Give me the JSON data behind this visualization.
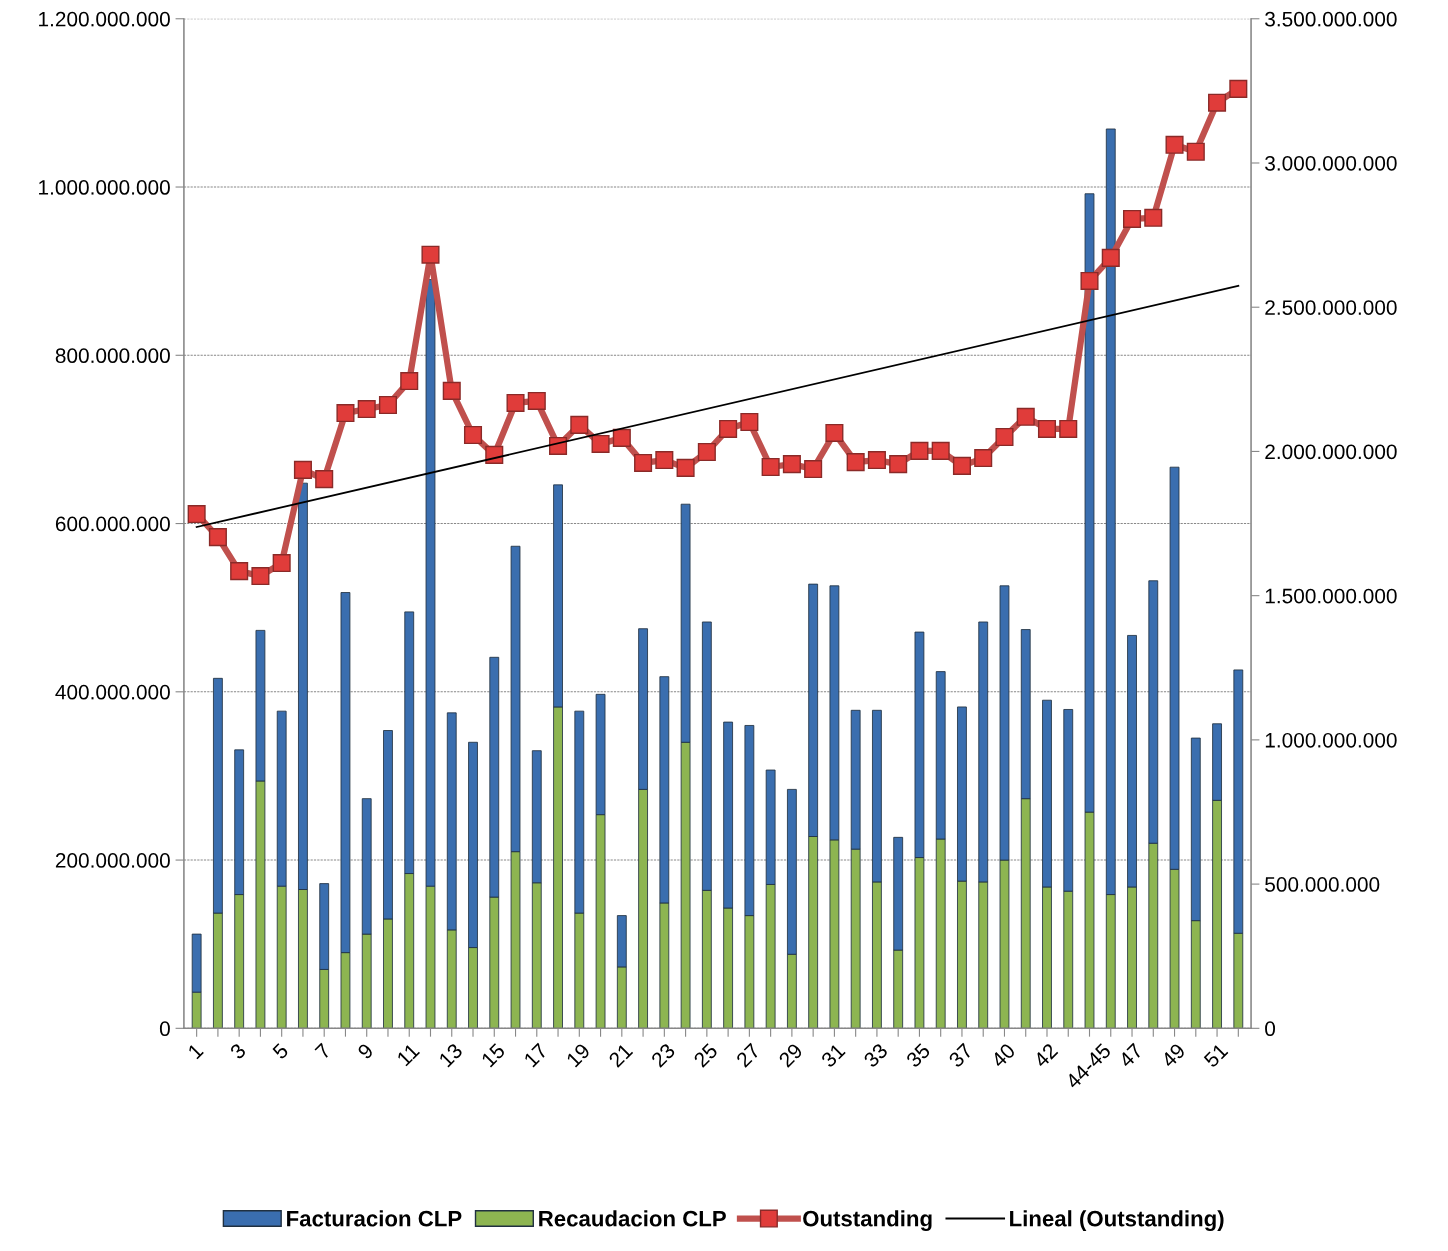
{
  "chart_data": {
    "type": "bar",
    "stacked": true,
    "legend": "bottom",
    "grid": "y",
    "tick_labels": true,
    "categories": [
      "1",
      null,
      "3",
      null,
      "5",
      null,
      "7",
      null,
      "9",
      null,
      "11",
      null,
      "13",
      null,
      "15",
      null,
      "17",
      null,
      "19",
      null,
      "21",
      null,
      "23",
      null,
      "25",
      null,
      "27",
      null,
      "29",
      null,
      "31",
      null,
      "33",
      null,
      "35",
      null,
      "37",
      null,
      "40",
      null,
      "42",
      null,
      "44-45",
      null,
      "47",
      null,
      "49",
      null,
      "51",
      null
    ],
    "ylim": [
      0,
      1200000000
    ],
    "yticks": [
      {
        "value": 0,
        "label": "0"
      },
      {
        "value": 200000000,
        "label": "200.000.000"
      },
      {
        "value": 400000000,
        "label": "400.000.000"
      },
      {
        "value": 600000000,
        "label": "600.000.000"
      },
      {
        "value": 800000000,
        "label": "800.000.000"
      },
      {
        "value": 1000000000,
        "label": "1.000.000.000"
      },
      {
        "value": 1200000000,
        "label": "1.200.000.000"
      }
    ],
    "y2lim": [
      0,
      3500000000
    ],
    "y2ticks": [
      {
        "value": 0,
        "label": "0"
      },
      {
        "value": 500000000,
        "label": "500.000.000"
      },
      {
        "value": 1000000000,
        "label": "1.000.000.000"
      },
      {
        "value": 1500000000,
        "label": "1.500.000.000"
      },
      {
        "value": 2000000000,
        "label": "2.000.000.000"
      },
      {
        "value": 2500000000,
        "label": "2.500.000.000"
      },
      {
        "value": 3000000000,
        "label": "3.000.000.000"
      },
      {
        "value": 3500000000,
        "label": "3.500.000.000"
      }
    ],
    "series": [
      {
        "name": "Recaudacion CLP",
        "color": "#8db551",
        "values": [
          43000000,
          137000000,
          159000000,
          294000000,
          169000000,
          165000000,
          70000000,
          90000000,
          112000000,
          130000000,
          184000000,
          169000000,
          117000000,
          96000000,
          156000000,
          210000000,
          173000000,
          382000000,
          137000000,
          254000000,
          73000000,
          284000000,
          149000000,
          340000000,
          164000000,
          143000000,
          134000000,
          171000000,
          88000000,
          228000000,
          224000000,
          213000000,
          174000000,
          93000000,
          203000000,
          225000000,
          175000000,
          174000000,
          200000000,
          273000000,
          168000000,
          163000000,
          257000000,
          159000000,
          168000000,
          220000000,
          189000000,
          128000000,
          271000000,
          113000000
        ]
      },
      {
        "name": "Facturacion CLP",
        "color": "#3a6eaf",
        "values": [
          69000000,
          279000000,
          172000000,
          179000000,
          208000000,
          483000000,
          102000000,
          428000000,
          161000000,
          224000000,
          311000000,
          721000000,
          258000000,
          244000000,
          285000000,
          363000000,
          157000000,
          264000000,
          240000000,
          143000000,
          61000000,
          191000000,
          269000000,
          283000000,
          319000000,
          221000000,
          226000000,
          136000000,
          196000000,
          300000000,
          302000000,
          165000000,
          204000000,
          134000000,
          268000000,
          199000000,
          207000000,
          309000000,
          326000000,
          201000000,
          222000000,
          216000000,
          735000000,
          910000000,
          299000000,
          312000000,
          478000000,
          217000000,
          91000000,
          313000000
        ]
      },
      {
        "name": "Outstanding",
        "type": "line",
        "axis": "y2",
        "color": "#c0504d",
        "marker": "square",
        "line_style": "solid",
        "values": [
          1783000000,
          1703000000,
          1585000000,
          1568000000,
          1613000000,
          1936000000,
          1904000000,
          2133000000,
          2147000000,
          2161000000,
          2244000000,
          2682000000,
          2210000000,
          2057000000,
          1988000000,
          2168000000,
          2175000000,
          2019000000,
          2092000000,
          2026000000,
          2047000000,
          1960000000,
          1970000000,
          1943000000,
          1998000000,
          2078000000,
          2102000000,
          1946000000,
          1956000000,
          1939000000,
          2064000000,
          1963000000,
          1970000000,
          1956000000,
          2002000000,
          2002000000,
          1950000000,
          1977000000,
          2050000000,
          2120000000,
          2078000000,
          2078000000,
          2591000000,
          2671000000,
          2806000000,
          2810000000,
          3063000000,
          3039000000,
          3209000000,
          3257000000
        ]
      },
      {
        "name": "Lineal (Outstanding)",
        "type": "line",
        "axis": "y2",
        "color": "#000000",
        "marker": "none",
        "line_style": "solid",
        "values": [
          1738000000,
          null,
          null,
          null,
          null,
          null,
          null,
          null,
          null,
          null,
          null,
          null,
          null,
          null,
          null,
          null,
          null,
          null,
          null,
          null,
          null,
          null,
          null,
          null,
          null,
          null,
          null,
          null,
          null,
          null,
          null,
          null,
          null,
          null,
          null,
          null,
          null,
          null,
          null,
          null,
          null,
          null,
          null,
          null,
          null,
          null,
          null,
          null,
          null,
          2574000000
        ]
      }
    ]
  }
}
